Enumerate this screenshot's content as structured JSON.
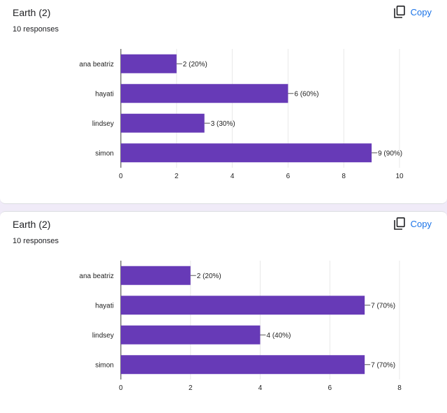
{
  "questions": [
    {
      "title": "Earth (2)",
      "responses": "10 responses",
      "copy_label": "Copy",
      "copy_icon": "copy-icon"
    },
    {
      "title": "Earth (2)",
      "responses": "10 responses",
      "copy_label": "Copy",
      "copy_icon": "copy-icon"
    }
  ],
  "colors": {
    "bar": "#673ab7",
    "accent": "#1a73e8",
    "background": "#f0ebf8"
  },
  "chart_data": [
    {
      "type": "bar",
      "orientation": "horizontal",
      "categories": [
        "ana beatriz",
        "hayati",
        "lindsey",
        "simon"
      ],
      "values": [
        2,
        6,
        3,
        9
      ],
      "data_labels": [
        "2 (20%)",
        "6 (60%)",
        "3 (30%)",
        "9 (90%)"
      ],
      "xlim": [
        0,
        10
      ],
      "xticks": [
        0,
        2,
        4,
        6,
        8,
        10
      ],
      "grid": true
    },
    {
      "type": "bar",
      "orientation": "horizontal",
      "categories": [
        "ana beatriz",
        "hayati",
        "lindsey",
        "simon"
      ],
      "values": [
        2,
        7,
        4,
        7
      ],
      "data_labels": [
        "2 (20%)",
        "7 (70%)",
        "4 (40%)",
        "7 (70%)"
      ],
      "xlim": [
        0,
        8
      ],
      "xticks": [
        0,
        2,
        4,
        6,
        8
      ],
      "grid": true
    }
  ]
}
